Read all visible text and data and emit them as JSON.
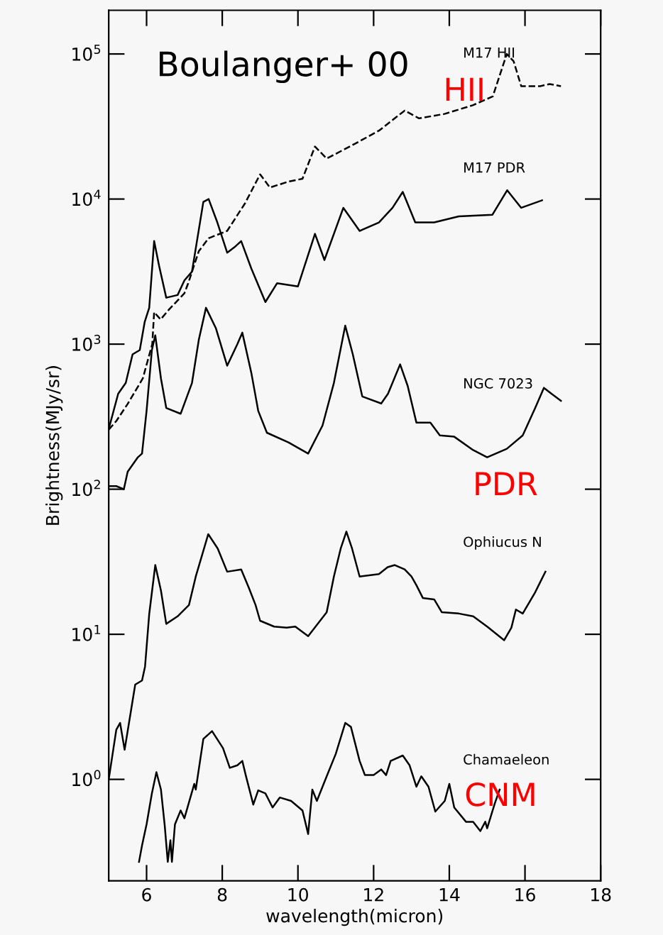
{
  "chart_data": {
    "type": "line",
    "xlabel": "wavelength(micron)",
    "ylabel": "Brightness(MJy/sr)",
    "log": "y",
    "grid": false,
    "marker": "none",
    "xlim": [
      5,
      18
    ],
    "xticks": [
      6,
      8,
      10,
      12,
      14,
      16,
      18
    ],
    "ylim": [
      0.2,
      200000
    ],
    "yticks": [
      {
        "value": 1,
        "label": "10$^{0}$"
      },
      {
        "value": 10,
        "label": "10$^{1}$"
      },
      {
        "value": 100,
        "label": "10$^{2}$"
      },
      {
        "value": 1000,
        "label": "10$^{3}$"
      },
      {
        "value": 10000,
        "label": "10$^{4}$"
      },
      {
        "value": 100000,
        "label": "10$^{5}$"
      }
    ],
    "series": [
      {
        "name": "M17 HII",
        "color": "#000000",
        "line_style": "dashed",
        "x": [
          5.0,
          5.2,
          5.5,
          5.9,
          6.15,
          6.2,
          6.37,
          6.6,
          7.0,
          7.1,
          7.38,
          7.64,
          8.13,
          8.6,
          9.0,
          9.26,
          9.75,
          10.12,
          10.45,
          10.76,
          11.5,
          12.14,
          12.82,
          13.2,
          13.87,
          14.62,
          15.15,
          15.33,
          15.52,
          15.7,
          15.9,
          16.4,
          16.65,
          16.95
        ],
        "values": [
          257,
          295,
          387,
          580,
          1000,
          1660,
          1480,
          1740,
          2240,
          2630,
          4370,
          5370,
          6030,
          9330,
          14800,
          12000,
          13200,
          13800,
          23000,
          19000,
          24000,
          29600,
          40700,
          36000,
          38600,
          44300,
          51000,
          71000,
          100000,
          89000,
          60000,
          60000,
          62000,
          60000
        ]
      },
      {
        "name": "M17 PDR",
        "color": "#000000",
        "line_style": "solid",
        "x": [
          5.0,
          5.25,
          5.45,
          5.63,
          5.82,
          5.95,
          6.07,
          6.2,
          6.33,
          6.52,
          6.82,
          7.0,
          7.2,
          7.5,
          7.64,
          7.87,
          8.13,
          8.32,
          8.5,
          8.77,
          9.14,
          9.45,
          10.0,
          10.45,
          10.7,
          11.2,
          11.63,
          12.14,
          12.5,
          12.77,
          13.1,
          13.6,
          14.25,
          15.14,
          15.53,
          15.9,
          16.45
        ],
        "values": [
          260,
          455,
          540,
          850,
          910,
          1420,
          1780,
          5130,
          3470,
          2090,
          2180,
          2750,
          3160,
          9550,
          10000,
          6900,
          4270,
          4650,
          5130,
          3310,
          1950,
          2630,
          2500,
          5760,
          3800,
          8700,
          6030,
          6900,
          8700,
          11200,
          6900,
          6900,
          7600,
          7800,
          11500,
          8700,
          9800
        ]
      },
      {
        "name": "NGC 7023",
        "color": "#000000",
        "line_style": "solid",
        "x": [
          5.0,
          5.2,
          5.4,
          5.5,
          5.77,
          5.88,
          6.0,
          6.14,
          6.23,
          6.38,
          6.52,
          6.9,
          7.2,
          7.38,
          7.57,
          7.83,
          8.13,
          8.4,
          8.53,
          8.77,
          8.95,
          9.18,
          9.75,
          10.27,
          10.65,
          10.95,
          11.25,
          11.45,
          11.7,
          12.2,
          12.38,
          12.7,
          12.9,
          13.13,
          13.5,
          13.75,
          14.13,
          14.63,
          15.0,
          15.52,
          15.94,
          16.27,
          16.5,
          16.7,
          16.95
        ],
        "values": [
          105,
          105,
          100,
          132,
          166,
          176,
          347,
          910,
          1150,
          580,
          363,
          331,
          540,
          1070,
          1780,
          1290,
          710,
          1000,
          1200,
          630,
          347,
          245,
          210,
          176,
          275,
          540,
          1340,
          850,
          436,
          390,
          455,
          725,
          515,
          288,
          288,
          235,
          230,
          186,
          166,
          190,
          235,
          363,
          500,
          455,
          407
        ]
      },
      {
        "name": "Ophiucus N",
        "color": "#000000",
        "line_style": "solid",
        "x": [
          5.0,
          5.2,
          5.3,
          5.42,
          5.7,
          5.88,
          5.96,
          6.07,
          6.23,
          6.38,
          6.52,
          6.82,
          7.12,
          7.3,
          7.63,
          7.88,
          8.13,
          8.5,
          8.7,
          8.88,
          9.0,
          9.37,
          9.7,
          9.93,
          10.27,
          10.76,
          10.95,
          11.13,
          11.28,
          11.43,
          11.63,
          12.14,
          12.37,
          12.56,
          12.82,
          13.0,
          13.13,
          13.3,
          13.6,
          13.8,
          14.25,
          14.63,
          15.0,
          15.45,
          15.64,
          15.76,
          15.94,
          16.27,
          16.54
        ],
        "values": [
          1.0,
          2.2,
          2.45,
          1.6,
          4.5,
          4.8,
          6.0,
          13.8,
          30,
          20,
          11.8,
          13.3,
          15.9,
          25,
          49,
          39,
          27,
          28,
          21,
          15.9,
          12.4,
          11.3,
          11.1,
          11.3,
          9.7,
          14.2,
          25,
          39,
          51,
          39,
          25,
          26,
          29,
          30,
          28,
          25,
          21.8,
          17.8,
          17.4,
          14.2,
          13.9,
          13.3,
          11.3,
          9.1,
          11.1,
          14.8,
          13.9,
          19.5,
          27
        ]
      },
      {
        "name": "Chamaeleon",
        "color": "#000000",
        "line_style": "solid",
        "x": [
          5.8,
          5.88,
          6.0,
          6.14,
          6.26,
          6.38,
          6.48,
          6.56,
          6.63,
          6.67,
          6.75,
          6.9,
          7.0,
          7.26,
          7.3,
          7.5,
          7.73,
          8.02,
          8.2,
          8.4,
          8.53,
          8.62,
          8.82,
          8.95,
          9.14,
          9.33,
          9.52,
          9.82,
          10.12,
          10.27,
          10.38,
          10.5,
          10.76,
          11.0,
          11.25,
          11.4,
          11.63,
          11.77,
          12.0,
          12.2,
          12.33,
          12.45,
          12.77,
          12.95,
          13.13,
          13.26,
          13.45,
          13.63,
          13.88,
          14.0,
          14.13,
          14.44,
          14.63,
          14.82,
          14.95,
          15.0,
          15.2,
          15.33
        ],
        "values": [
          0.27,
          0.35,
          0.49,
          0.8,
          1.12,
          0.85,
          0.48,
          0.27,
          0.38,
          0.27,
          0.49,
          0.61,
          0.54,
          0.93,
          0.85,
          1.9,
          2.15,
          1.64,
          1.2,
          1.25,
          1.34,
          1.07,
          0.67,
          0.84,
          0.8,
          0.64,
          0.75,
          0.71,
          0.61,
          0.42,
          0.85,
          0.71,
          1.05,
          1.5,
          2.45,
          2.3,
          1.34,
          1.07,
          1.07,
          1.17,
          1.07,
          1.34,
          1.46,
          1.25,
          0.89,
          1.05,
          0.89,
          0.6,
          0.71,
          0.93,
          0.64,
          0.51,
          0.51,
          0.44,
          0.51,
          0.46,
          0.68,
          0.85
        ]
      }
    ],
    "annotations": [
      "Boulanger+ 00",
      "HII",
      "PDR",
      "CNM"
    ]
  }
}
